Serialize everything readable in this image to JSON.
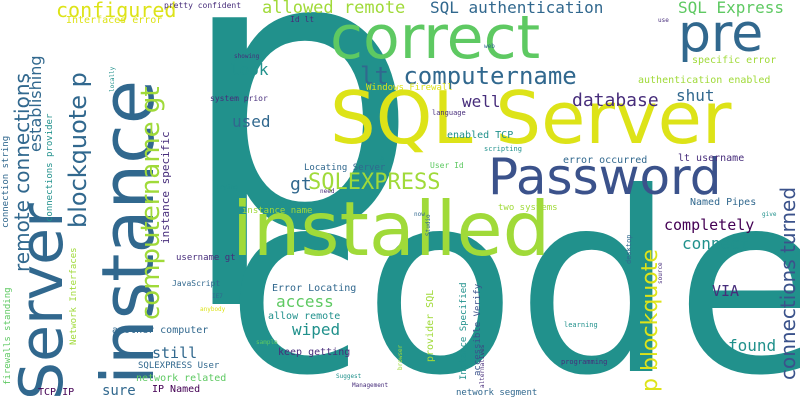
{
  "word_cloud": {
    "background": "#ffffff",
    "palette": {
      "teal": "#21918c",
      "green": "#5ec962",
      "lime": "#a0da39",
      "yellow": "#dde318",
      "blue": "#3b528b",
      "navy": "#31688e",
      "purple": "#472d7b",
      "indigo": "#440154",
      "cyan": "#1fa187"
    },
    "words": [
      {
        "text": "p",
        "color": "teal"
      },
      {
        "text": "code",
        "color": "teal"
      },
      {
        "text": "installed",
        "color": "lime"
      },
      {
        "text": "SQL Server",
        "color": "yellow"
      },
      {
        "text": "correct",
        "color": "green"
      },
      {
        "text": "Password",
        "color": "blue"
      },
      {
        "text": "instance",
        "color": "navy"
      },
      {
        "text": "Server",
        "color": "navy"
      },
      {
        "text": "pre",
        "color": "navy"
      },
      {
        "text": "computername gt",
        "color": "lime"
      },
      {
        "text": "p blockquote",
        "color": "yellow"
      },
      {
        "text": "lt computername",
        "color": "navy"
      },
      {
        "text": "SQLEXPRESS",
        "color": "lime"
      },
      {
        "text": "blockquote p",
        "color": "navy"
      },
      {
        "text": "remote connections",
        "color": "navy"
      },
      {
        "text": "connections turned",
        "color": "blue"
      },
      {
        "text": "configured",
        "color": "yellow"
      },
      {
        "text": "allowed remote",
        "color": "lime"
      },
      {
        "text": "SQL authentication",
        "color": "navy"
      },
      {
        "text": "SQL Express",
        "color": "green"
      },
      {
        "text": "establishing",
        "color": "navy"
      },
      {
        "text": "database",
        "color": "purple"
      },
      {
        "text": "shut",
        "color": "navy"
      },
      {
        "text": "well",
        "color": "purple"
      },
      {
        "text": "look",
        "color": "teal"
      },
      {
        "text": "used",
        "color": "navy"
      },
      {
        "text": "gt",
        "color": "navy"
      },
      {
        "text": "completely",
        "color": "indigo"
      },
      {
        "text": "connect",
        "color": "teal"
      },
      {
        "text": "access",
        "color": "green"
      },
      {
        "text": "wiped",
        "color": "teal"
      },
      {
        "text": "VIA",
        "color": "purple"
      },
      {
        "text": "found",
        "color": "teal"
      },
      {
        "text": "still",
        "color": "navy"
      },
      {
        "text": "sure",
        "color": "navy"
      },
      {
        "text": "specific error",
        "color": "lime"
      },
      {
        "text": "authentication enabled",
        "color": "lime"
      },
      {
        "text": "error occurred",
        "color": "navy"
      },
      {
        "text": "lt username",
        "color": "purple"
      },
      {
        "text": "Named Pipes",
        "color": "navy"
      },
      {
        "text": "enabled TCP",
        "color": "teal"
      },
      {
        "text": "instance specific",
        "color": "purple"
      },
      {
        "text": "Locating Server",
        "color": "navy"
      },
      {
        "text": "instance name",
        "color": "lime"
      },
      {
        "text": "two systems",
        "color": "lime"
      },
      {
        "text": "Error Locating",
        "color": "navy"
      },
      {
        "text": "allow remote",
        "color": "teal"
      },
      {
        "text": "keep getting",
        "color": "purple"
      },
      {
        "text": "another computer",
        "color": "navy"
      },
      {
        "text": "IP Named",
        "color": "indigo"
      },
      {
        "text": "TCP IP",
        "color": "indigo"
      },
      {
        "text": "network related",
        "color": "green"
      },
      {
        "text": "SQLEXPRESS User",
        "color": "navy"
      },
      {
        "text": "username gt",
        "color": "purple"
      },
      {
        "text": "JavaScript",
        "color": "navy"
      },
      {
        "text": "provider SQL",
        "color": "lime"
      },
      {
        "text": "Instance Specified",
        "color": "teal"
      },
      {
        "text": "accessible Verify",
        "color": "blue"
      },
      {
        "text": "Interfaces error",
        "color": "yellow"
      },
      {
        "text": "pretty confident",
        "color": "purple"
      },
      {
        "text": "Id lt",
        "color": "purple"
      },
      {
        "text": "system prior",
        "color": "purple"
      },
      {
        "text": "Windows Firewall",
        "color": "yellow"
      },
      {
        "text": "User Id",
        "color": "green"
      },
      {
        "text": "language",
        "color": "purple"
      },
      {
        "text": "scripting",
        "color": "teal"
      },
      {
        "text": "connection string",
        "color": "navy"
      },
      {
        "text": "connections provider",
        "color": "teal"
      },
      {
        "text": "Network Interfaces",
        "color": "lime"
      },
      {
        "text": "firewalls standing",
        "color": "green"
      },
      {
        "text": "network segment",
        "color": "navy"
      },
      {
        "text": "programming",
        "color": "purple"
      },
      {
        "text": "learning",
        "color": "teal"
      },
      {
        "text": "alternatives",
        "color": "purple"
      },
      {
        "text": "Management",
        "color": "purple"
      },
      {
        "text": "Suggest",
        "color": "teal"
      },
      {
        "text": "desktop",
        "color": "navy"
      },
      {
        "text": "Studio",
        "color": "navy"
      },
      {
        "text": "give",
        "color": "teal"
      },
      {
        "text": "source",
        "color": "purple"
      },
      {
        "text": "browser",
        "color": "lime"
      },
      {
        "text": "sample",
        "color": "green"
      },
      {
        "text": "anybody",
        "color": "yellow"
      },
      {
        "text": "IE7",
        "color": "navy"
      },
      {
        "text": "trying",
        "color": "teal"
      },
      {
        "text": "showing",
        "color": "purple"
      },
      {
        "text": "locally",
        "color": "teal"
      },
      {
        "text": "web",
        "color": "navy"
      },
      {
        "text": "use",
        "color": "purple"
      },
      {
        "text": "now",
        "color": "navy"
      },
      {
        "text": "need",
        "color": "purple"
      },
      {
        "text": "a",
        "color": "teal"
      }
    ]
  }
}
